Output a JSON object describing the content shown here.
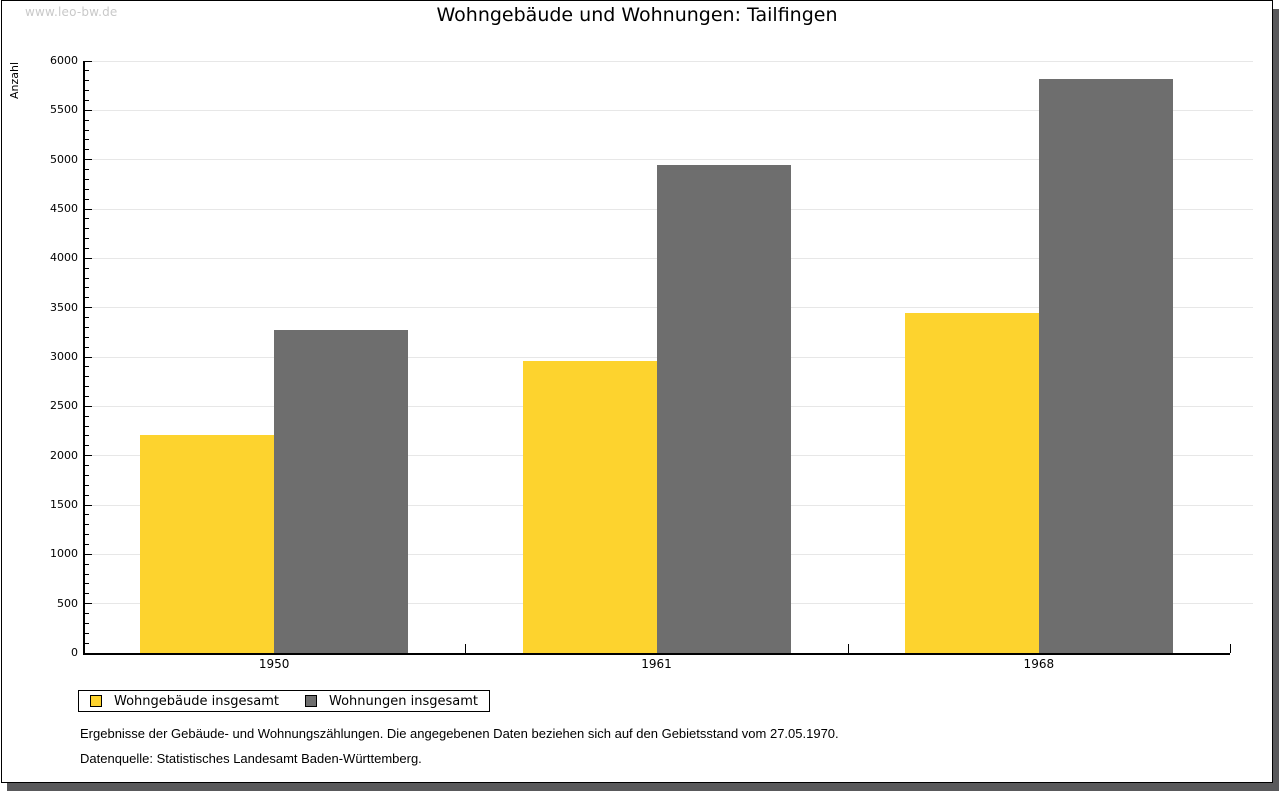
{
  "watermark": "www.leo-bw.de",
  "chart_data": {
    "type": "bar",
    "title": "Wohngebäude und Wohnungen: Tailfingen",
    "ylabel": "Anzahl",
    "xlabel": "",
    "categories": [
      "1950",
      "1961",
      "1968"
    ],
    "series": [
      {
        "name": "Wohngebäude insgesamt",
        "color": "#FDD32E",
        "values": [
          2210,
          2960,
          3450
        ]
      },
      {
        "name": "Wohnungen insgesamt",
        "color": "#6E6E6E",
        "values": [
          3270,
          4950,
          5820
        ]
      }
    ],
    "ylim": [
      0,
      6000
    ],
    "ytick_step": 500,
    "yminor_step": 100,
    "grid": "horizontal-major",
    "legend_position": "bottom-left"
  },
  "footnotes": [
    "Ergebnisse der Gebäude- und Wohnungszählungen. Die angegebenen Daten beziehen sich auf den Gebietsstand vom 27.05.1970.",
    "Datenquelle: Statistisches Landesamt Baden-Württemberg."
  ],
  "colors": {
    "bar_yellow": "#FDD32E",
    "bar_gray": "#6E6E6E",
    "gridline": "#E7E7E7",
    "axis": "#000000",
    "watermark": "#C9C9C9",
    "shadow": "#59595B",
    "background": "#FFFFFF"
  }
}
